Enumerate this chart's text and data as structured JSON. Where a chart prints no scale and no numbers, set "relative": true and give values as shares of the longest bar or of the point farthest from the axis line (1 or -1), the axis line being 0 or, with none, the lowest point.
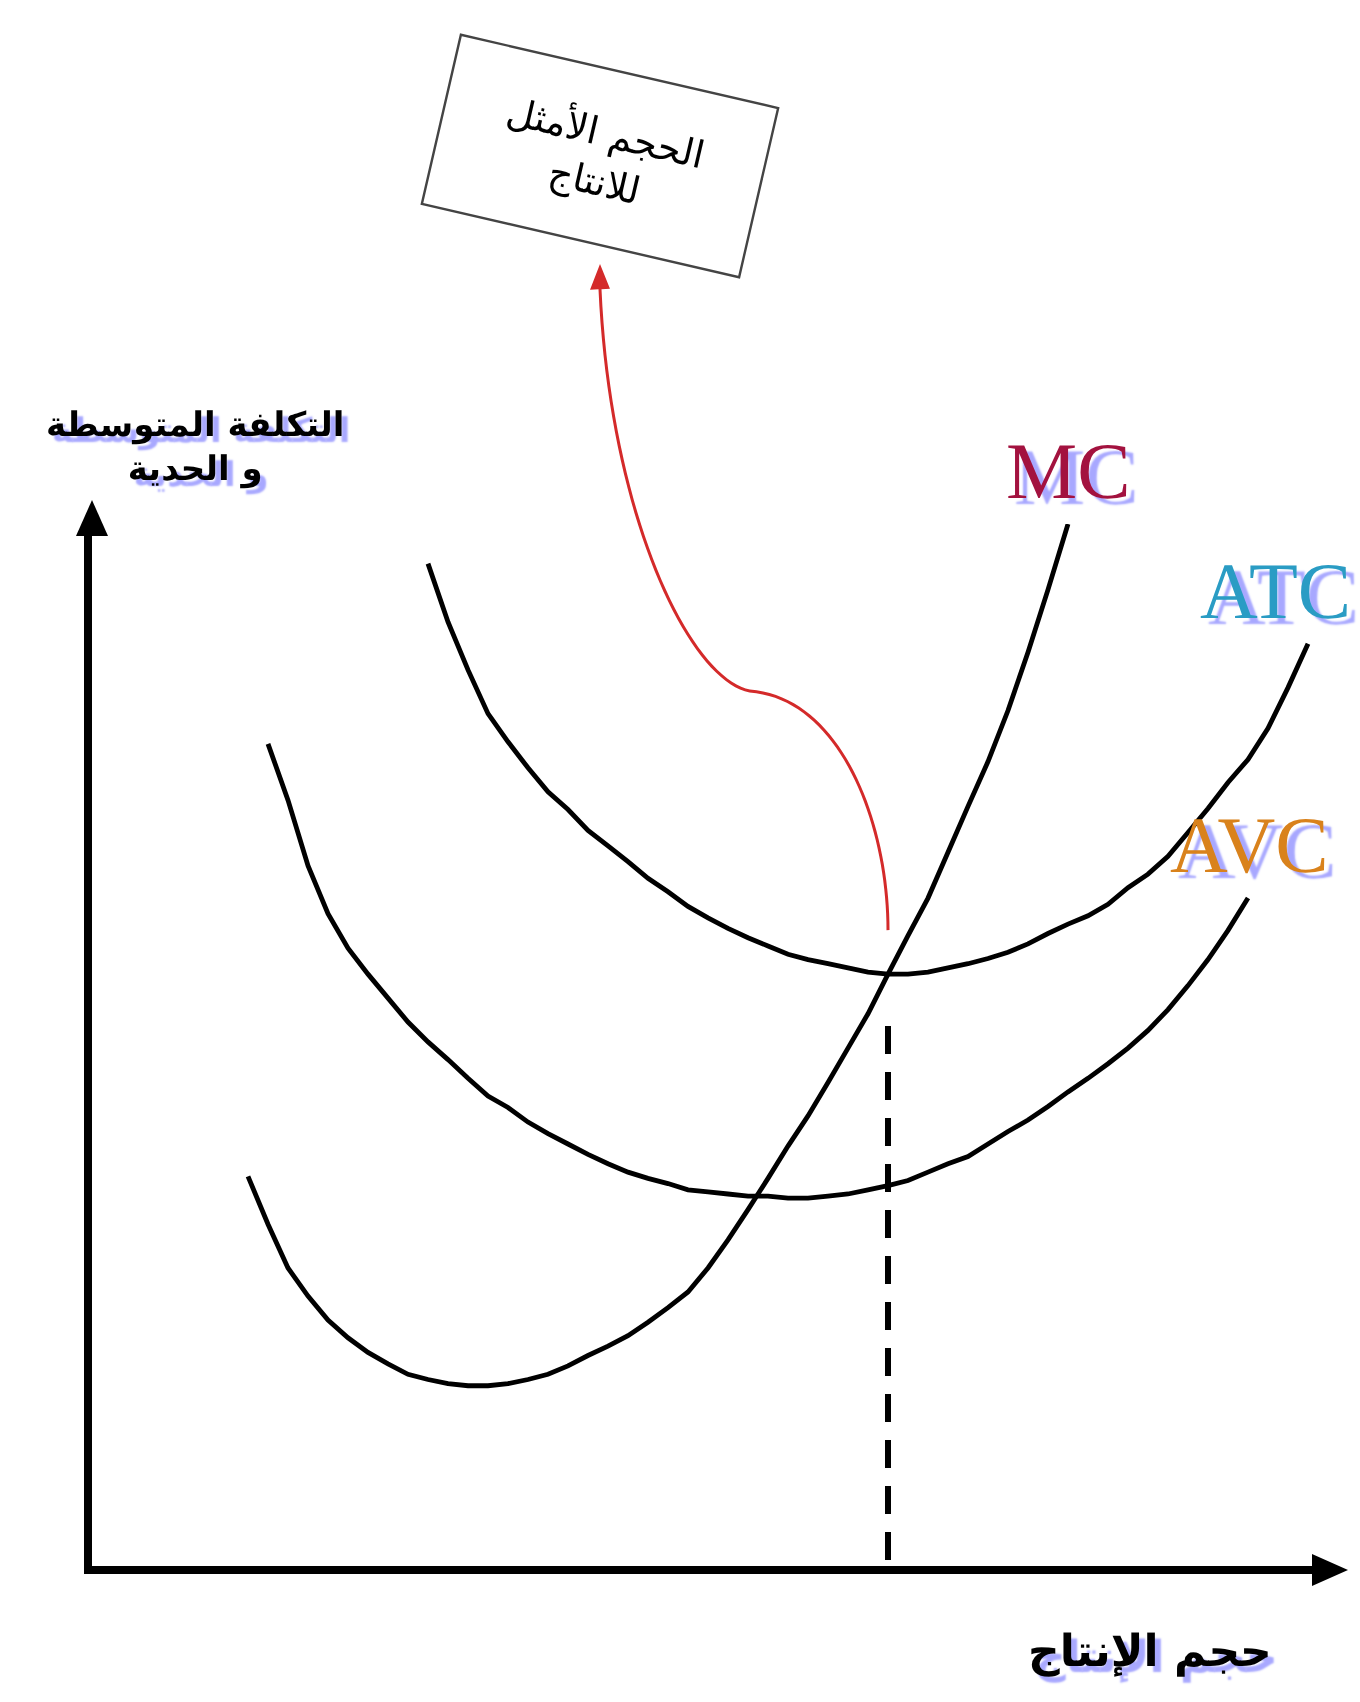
{
  "chart_data": {
    "type": "line",
    "relative": true,
    "xlabel": "حجم الإنتاج",
    "ylabel": "التكلفة المتوسطة\nو الحدية",
    "annotations": [
      "الحجم الأمثل\nللانتاج"
    ],
    "categories": [
      null,
      null,
      null,
      null,
      null,
      null,
      null,
      null,
      null,
      null,
      null,
      null,
      null,
      null,
      null,
      null,
      null,
      null,
      null,
      null,
      null,
      null,
      null,
      null,
      null,
      null,
      null,
      null,
      null,
      null,
      null,
      null,
      null,
      null,
      null,
      null,
      null,
      null,
      null,
      null,
      null,
      null,
      null,
      null,
      null,
      null,
      null,
      null,
      null,
      null,
      null,
      null,
      null,
      null
    ],
    "series": [
      {
        "name": "MC",
        "color": "#000000",
        "values": [
          0.374,
          0.328,
          0.286,
          0.259,
          0.236,
          0.219,
          0.205,
          0.194,
          0.184,
          0.179,
          0.175,
          0.173,
          0.173,
          0.175,
          0.179,
          0.184,
          0.192,
          0.202,
          0.211,
          0.221,
          0.234,
          0.248,
          0.263,
          0.286,
          0.313,
          0.342,
          0.372,
          0.403,
          0.432,
          0.464,
          0.497,
          0.53,
          0.568,
          0.605,
          0.641,
          0.685,
          0.729,
          0.772,
          0.821,
          0.877,
          0.937,
          1.0,
          null,
          null,
          null,
          null,
          null,
          null,
          null,
          null,
          null,
          null,
          null,
          null
        ]
      },
      {
        "name": "ATC",
        "color": "#000000",
        "values": [
          null,
          null,
          null,
          null,
          null,
          null,
          null,
          null,
          null,
          0.962,
          0.906,
          0.86,
          0.818,
          0.791,
          0.766,
          0.743,
          0.726,
          0.706,
          0.691,
          0.676,
          0.66,
          0.647,
          0.633,
          0.622,
          0.612,
          0.603,
          0.595,
          0.587,
          0.582,
          0.578,
          0.574,
          0.57,
          0.568,
          0.568,
          0.57,
          0.574,
          0.578,
          0.583,
          0.589,
          0.597,
          0.607,
          0.616,
          0.624,
          0.635,
          0.651,
          0.664,
          0.681,
          0.704,
          0.727,
          0.752,
          0.774,
          0.804,
          0.843,
          0.885
        ]
      },
      {
        "name": "AVC",
        "color": "#000000",
        "values": [
          null,
          0.789,
          0.735,
          0.672,
          0.626,
          0.593,
          0.568,
          0.545,
          0.522,
          0.503,
          0.486,
          0.468,
          0.451,
          0.44,
          0.426,
          0.415,
          0.405,
          0.395,
          0.386,
          0.378,
          0.372,
          0.367,
          0.361,
          0.359,
          0.357,
          0.355,
          0.355,
          0.353,
          0.353,
          0.355,
          0.357,
          0.361,
          0.365,
          0.37,
          0.378,
          0.386,
          0.393,
          0.405,
          0.417,
          0.428,
          0.441,
          0.455,
          0.468,
          0.482,
          0.497,
          0.514,
          0.534,
          0.557,
          0.582,
          0.61,
          0.641,
          null,
          null,
          null
        ]
      }
    ],
    "legend": false,
    "grid": false,
    "marker": "none",
    "line_style": "solid"
  }
}
